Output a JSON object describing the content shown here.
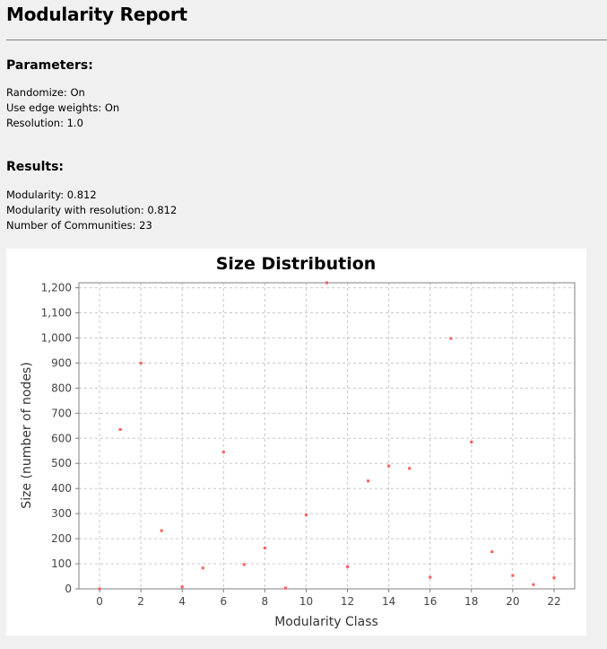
{
  "report": {
    "title": "Modularity Report"
  },
  "parameters": {
    "heading": "Parameters:",
    "lines": [
      "Randomize: On",
      "Use edge weights: On",
      "Resolution: 1.0"
    ]
  },
  "results": {
    "heading": "Results:",
    "lines": [
      "Modularity: 0.812",
      "Modularity with resolution: 0.812",
      "Number of Communities: 23"
    ]
  },
  "colors": {
    "point": "#ff5a5a",
    "grid": "#c8c8c8",
    "axis": "#808080",
    "tick_label": "#444444"
  },
  "chart_data": {
    "type": "scatter",
    "title": "Size Distribution",
    "xlabel": "Modularity Class",
    "ylabel": "Size (number of nodes)",
    "xlim": [
      -1,
      23
    ],
    "ylim": [
      0,
      1220
    ],
    "x_ticks": [
      0,
      2,
      4,
      6,
      8,
      10,
      12,
      14,
      16,
      18,
      20,
      22
    ],
    "y_ticks": [
      0,
      100,
      200,
      300,
      400,
      500,
      600,
      700,
      800,
      900,
      1000,
      1100,
      1200
    ],
    "y_tick_labels": [
      "0",
      "100",
      "200",
      "300",
      "400",
      "500",
      "600",
      "700",
      "800",
      "900",
      "1,000",
      "1,100",
      "1,200"
    ],
    "grid": true,
    "legend": "none",
    "x": [
      0,
      1,
      2,
      3,
      4,
      5,
      6,
      7,
      8,
      9,
      10,
      11,
      12,
      13,
      14,
      15,
      16,
      17,
      18,
      19,
      20,
      21,
      22
    ],
    "y": [
      0,
      635,
      900,
      232,
      8,
      83,
      545,
      97,
      163,
      3,
      295,
      1220,
      88,
      430,
      490,
      480,
      46,
      998,
      585,
      148,
      53,
      17,
      44
    ]
  }
}
